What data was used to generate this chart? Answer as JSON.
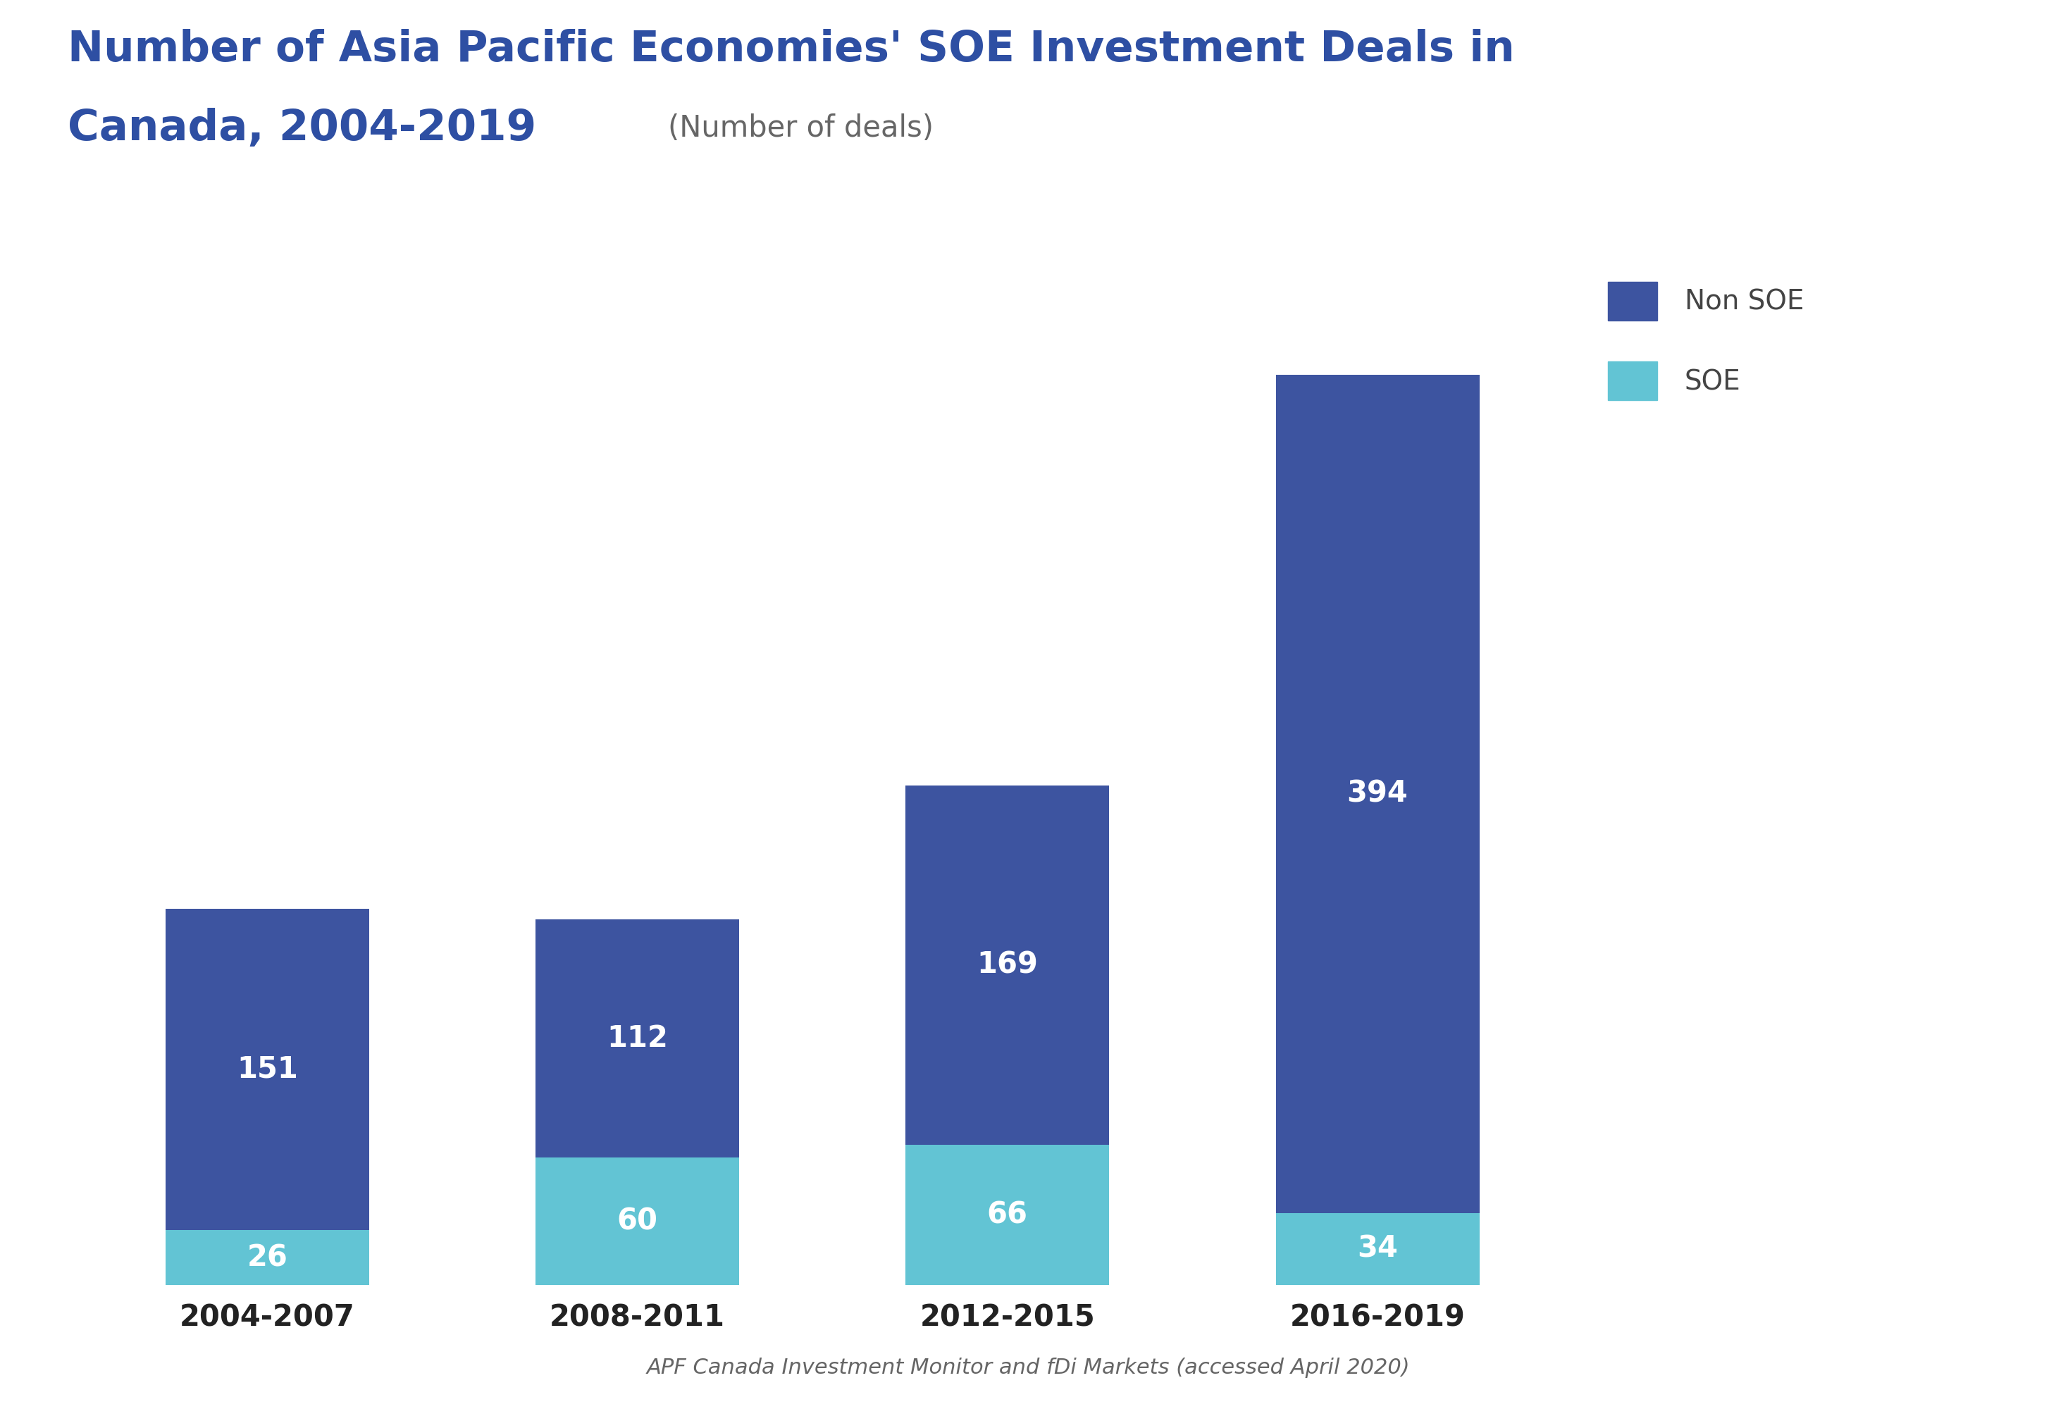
{
  "title_line1": "Number of Asia Pacific Economies' SOE Investment Deals in",
  "title_line2": "Canada, 2004-2019",
  "subtitle": "(Number of deals)",
  "categories": [
    "2004-2007",
    "2008-2011",
    "2012-2015",
    "2016-2019"
  ],
  "soe_values": [
    26,
    60,
    66,
    34
  ],
  "non_soe_values": [
    151,
    112,
    169,
    394
  ],
  "non_soe_color": "#3d54a0",
  "soe_color": "#62c4d4",
  "background_color": "#ffffff",
  "header_bg_color": "#e5f2f8",
  "title_color": "#2e4fa3",
  "subtitle_color": "#666666",
  "label_color": "#ffffff",
  "legend_text_color": "#444444",
  "xlabel_color": "#222222",
  "source_text": "APF Canada Investment Monitor and fDi Markets (accessed April 2020)",
  "source_color": "#666666",
  "bar_width": 0.55,
  "ylim": [
    0,
    470
  ]
}
